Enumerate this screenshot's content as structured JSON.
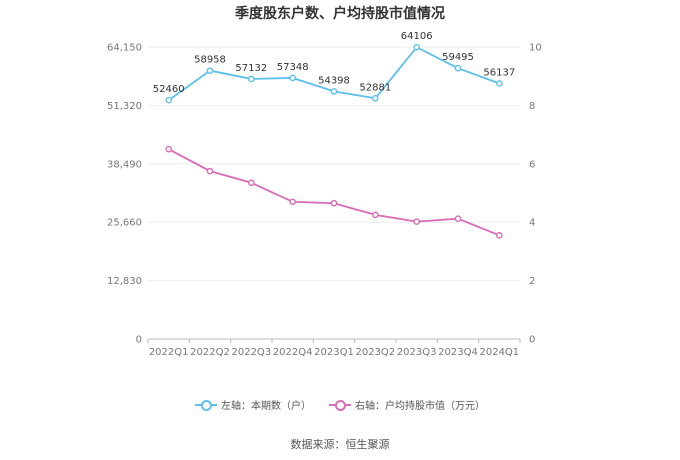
{
  "chart_data": {
    "type": "line",
    "title": "季度股东户数、户均持股市值情况",
    "categories": [
      "2022Q1",
      "2022Q2",
      "2022Q3",
      "2022Q4",
      "2023Q1",
      "2023Q2",
      "2023Q3",
      "2023Q4",
      "2024Q1"
    ],
    "left_axis": {
      "ticks": [
        "0",
        "12,830",
        "25,660",
        "38,490",
        "51,320",
        "64,150"
      ],
      "ylim": [
        0,
        64150
      ]
    },
    "right_axis": {
      "ticks": [
        "0",
        "2",
        "4",
        "6",
        "8",
        "10"
      ],
      "ylim": [
        0,
        10
      ]
    },
    "series": [
      {
        "name": "左轴：本期数（户）",
        "axis": "left",
        "color": "#5bc0eb",
        "values": [
          52460,
          58958,
          57132,
          57348,
          54398,
          52881,
          64106,
          59495,
          56137
        ],
        "labels": [
          "52460",
          "58958",
          "57132",
          "57348",
          "54398",
          "52881",
          "64106",
          "59495",
          "56137"
        ]
      },
      {
        "name": "右轴：户均持股市值（万元）",
        "axis": "right",
        "color": "#d96bb5",
        "values": [
          6.5,
          5.75,
          5.35,
          4.7,
          4.65,
          4.25,
          4.02,
          4.12,
          3.55
        ]
      }
    ],
    "grid": true,
    "legend_position": "bottom"
  },
  "source": "数据来源：恒生聚源"
}
